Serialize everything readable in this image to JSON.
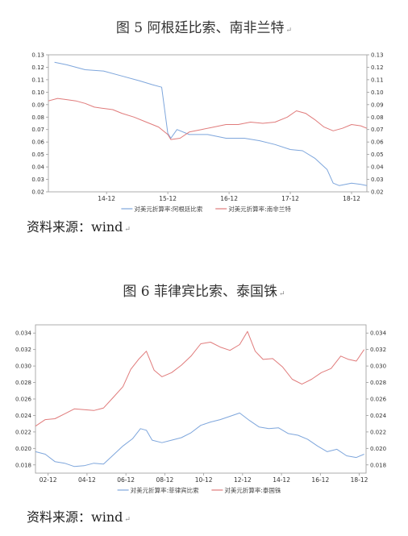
{
  "figure1": {
    "title": "图 5 阿根廷比索、南非兰特",
    "source": "资料来源：wind"
  },
  "figure2": {
    "title": "图 6 菲律宾比索、泰国铢",
    "source": "资料来源：wind"
  },
  "colors": {
    "blue": "#7ea6dc",
    "red": "#e07b7b"
  },
  "chart_data": [
    {
      "type": "line",
      "title": "图 5 阿根廷比索、南非兰特",
      "x_ticks": [
        "14-12",
        "15-12",
        "16-12",
        "17-12",
        "18-12"
      ],
      "x_range": [
        2014.0,
        2019.2
      ],
      "ylim": [
        0.02,
        0.13
      ],
      "y_ticks": [
        0.02,
        0.03,
        0.04,
        0.05,
        0.06,
        0.07,
        0.08,
        0.09,
        0.1,
        0.11,
        0.12,
        0.13
      ],
      "secondary_axis_mirrored": true,
      "legend_position": "bottom",
      "series": [
        {
          "name": "对美元折算率:阿根廷比索",
          "color": "#7ea6dc",
          "x": [
            2014.1,
            2014.3,
            2014.6,
            2014.9,
            2015.2,
            2015.5,
            2015.7,
            2015.85,
            2015.95,
            2016.0,
            2016.1,
            2016.3,
            2016.6,
            2016.9,
            2017.2,
            2017.45,
            2017.7,
            2017.95,
            2018.15,
            2018.35,
            2018.55,
            2018.65,
            2018.75,
            2018.95,
            2019.1,
            2019.2
          ],
          "y": [
            0.124,
            0.122,
            0.118,
            0.117,
            0.113,
            0.109,
            0.106,
            0.104,
            0.067,
            0.063,
            0.07,
            0.066,
            0.066,
            0.063,
            0.063,
            0.061,
            0.058,
            0.054,
            0.053,
            0.047,
            0.038,
            0.027,
            0.025,
            0.027,
            0.026,
            0.025
          ]
        },
        {
          "name": "对美元折算率:南非兰特",
          "color": "#e07b7b",
          "x": [
            2014.0,
            2014.15,
            2014.3,
            2014.45,
            2014.6,
            2014.75,
            2014.9,
            2015.05,
            2015.2,
            2015.4,
            2015.6,
            2015.8,
            2015.95,
            2016.0,
            2016.15,
            2016.3,
            2016.5,
            2016.7,
            2016.9,
            2017.1,
            2017.3,
            2017.5,
            2017.7,
            2017.9,
            2018.05,
            2018.2,
            2018.35,
            2018.5,
            2018.65,
            2018.8,
            2018.95,
            2019.1,
            2019.2
          ],
          "y": [
            0.093,
            0.095,
            0.094,
            0.093,
            0.091,
            0.088,
            0.087,
            0.086,
            0.083,
            0.08,
            0.076,
            0.072,
            0.066,
            0.062,
            0.063,
            0.068,
            0.07,
            0.072,
            0.074,
            0.074,
            0.076,
            0.075,
            0.076,
            0.08,
            0.085,
            0.083,
            0.078,
            0.072,
            0.069,
            0.071,
            0.074,
            0.073,
            0.071
          ]
        }
      ]
    },
    {
      "type": "line",
      "title": "图 6 菲律宾比索、泰国铢",
      "x_ticks": [
        "02-12",
        "04-12",
        "06-12",
        "08-12",
        "10-12",
        "12-12",
        "14-12",
        "16-12",
        "18-12"
      ],
      "x_range": [
        2002.3,
        2019.3
      ],
      "ylim": [
        0.017,
        0.035
      ],
      "y_ticks": [
        0.018,
        0.02,
        0.022,
        0.024,
        0.026,
        0.028,
        0.03,
        0.032,
        0.034
      ],
      "secondary_axis_mirrored": true,
      "legend_position": "bottom",
      "series": [
        {
          "name": "对美元折算率:菲律宾比索",
          "color": "#7ea6dc",
          "x": [
            2002.3,
            2002.8,
            2003.3,
            2003.8,
            2004.3,
            2004.8,
            2005.3,
            2005.8,
            2006.3,
            2006.8,
            2007.3,
            2007.7,
            2008.0,
            2008.3,
            2008.8,
            2009.3,
            2009.8,
            2010.3,
            2010.8,
            2011.3,
            2011.8,
            2012.3,
            2012.8,
            2013.3,
            2013.8,
            2014.3,
            2014.8,
            2015.3,
            2015.8,
            2016.3,
            2016.8,
            2017.3,
            2017.8,
            2018.3,
            2018.8,
            2019.2
          ],
          "y": [
            0.0196,
            0.0193,
            0.0184,
            0.0182,
            0.0178,
            0.0179,
            0.0182,
            0.0181,
            0.0192,
            0.0203,
            0.0212,
            0.0224,
            0.0222,
            0.021,
            0.0207,
            0.021,
            0.0213,
            0.0219,
            0.0228,
            0.0232,
            0.0235,
            0.0239,
            0.0243,
            0.0234,
            0.0226,
            0.0224,
            0.0225,
            0.0218,
            0.0216,
            0.0211,
            0.0203,
            0.0196,
            0.0199,
            0.0191,
            0.0189,
            0.0193
          ]
        },
        {
          "name": "对美元折算率:泰国铢",
          "color": "#e07b7b",
          "x": [
            2002.3,
            2002.8,
            2003.3,
            2003.8,
            2004.3,
            2004.8,
            2005.3,
            2005.8,
            2006.3,
            2006.8,
            2007.2,
            2007.6,
            2008.0,
            2008.4,
            2008.8,
            2009.3,
            2009.8,
            2010.3,
            2010.8,
            2011.3,
            2011.8,
            2012.3,
            2012.8,
            2013.2,
            2013.6,
            2014.0,
            2014.5,
            2015.0,
            2015.5,
            2016.0,
            2016.5,
            2017.0,
            2017.5,
            2018.0,
            2018.4,
            2018.8,
            2019.2
          ],
          "y": [
            0.0227,
            0.0235,
            0.0236,
            0.0242,
            0.0248,
            0.0247,
            0.0246,
            0.0249,
            0.0262,
            0.0275,
            0.0296,
            0.0308,
            0.0318,
            0.0295,
            0.0287,
            0.0292,
            0.0301,
            0.0312,
            0.0327,
            0.0329,
            0.0323,
            0.0319,
            0.0326,
            0.0342,
            0.0318,
            0.0308,
            0.0309,
            0.0299,
            0.0284,
            0.0278,
            0.0284,
            0.0292,
            0.0297,
            0.0312,
            0.0308,
            0.0306,
            0.032
          ]
        }
      ]
    }
  ]
}
